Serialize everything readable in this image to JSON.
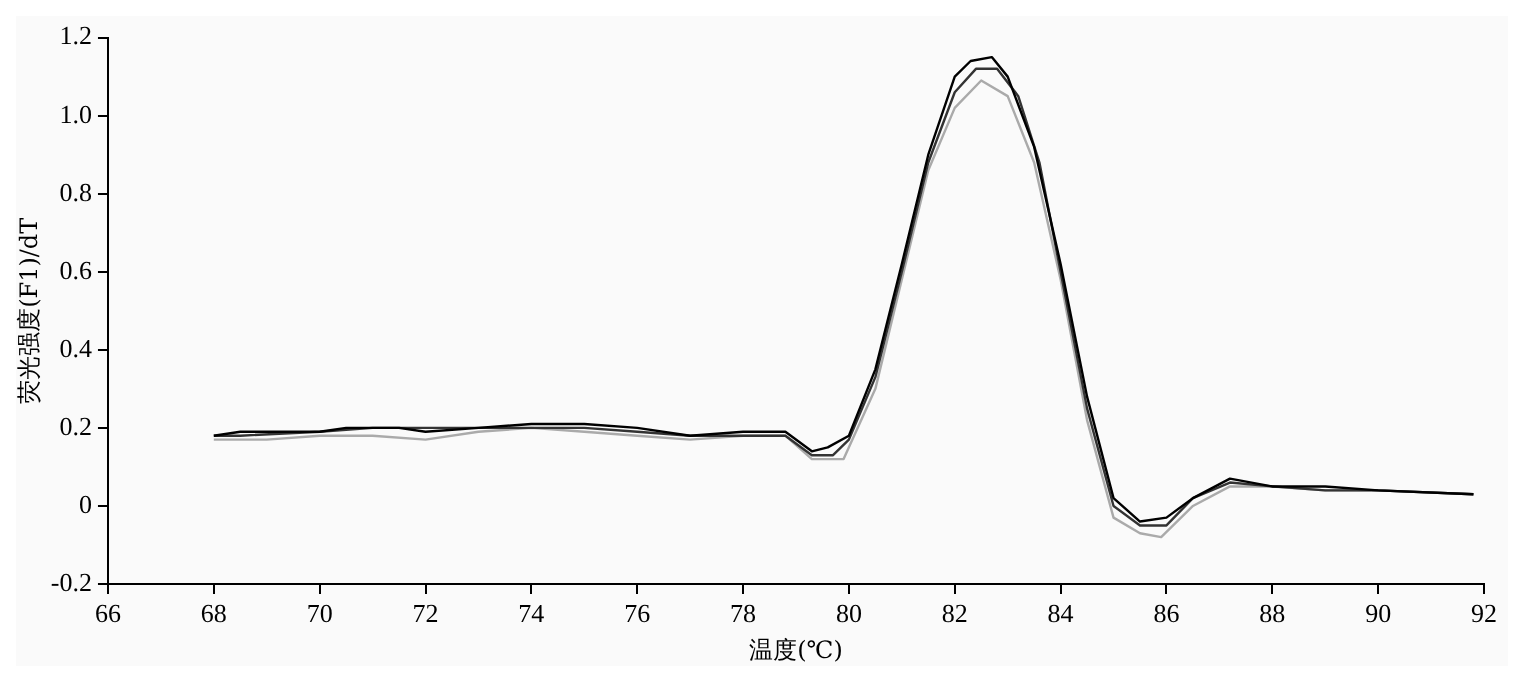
{
  "chart_data": {
    "type": "line",
    "xlabel": "温度(℃)",
    "ylabel": "荧光强度(F1)/dT",
    "xlim": [
      66,
      92
    ],
    "xticks": [
      66,
      68,
      70,
      72,
      74,
      76,
      78,
      80,
      82,
      84,
      86,
      88,
      90,
      92
    ],
    "ylim": [
      -0.2,
      1.2
    ],
    "yticks": [
      -0.2,
      0,
      0.2,
      0.4,
      0.6,
      0.8,
      {
        "value": 1,
        "label": "1.0"
      },
      1.2
    ],
    "grid": false,
    "legend": false,
    "marker": "none",
    "line_style": "solid",
    "series": [
      {
        "color": "#000000",
        "x": [
          68,
          68.5,
          70,
          70.5,
          71.5,
          72,
          73,
          74,
          75,
          76,
          77,
          78,
          78.8,
          79.3,
          79.6,
          80,
          80.5,
          81,
          81.5,
          82,
          82.3,
          82.7,
          83,
          83.5,
          84,
          84.5,
          85,
          85.5,
          86,
          86.5,
          87.2,
          88,
          89,
          90,
          91.8
        ],
        "values": [
          0.18,
          0.19,
          0.19,
          0.2,
          0.2,
          0.19,
          0.2,
          0.21,
          0.21,
          0.2,
          0.18,
          0.19,
          0.19,
          0.14,
          0.15,
          0.18,
          0.35,
          0.62,
          0.9,
          1.1,
          1.14,
          1.15,
          1.1,
          0.92,
          0.62,
          0.28,
          0.02,
          -0.04,
          -0.03,
          0.02,
          0.07,
          0.05,
          0.05,
          0.04,
          0.03
        ]
      },
      {
        "color": "#333333",
        "x": [
          68,
          68.5,
          70,
          71,
          72,
          73,
          74,
          75,
          76,
          77,
          78,
          78.8,
          79.3,
          79.7,
          80,
          80.5,
          81,
          81.5,
          82,
          82.4,
          82.8,
          83.2,
          83.6,
          84,
          84.5,
          85,
          85.5,
          86,
          86.5,
          87.2,
          88,
          89,
          90,
          91.8
        ],
        "values": [
          0.18,
          0.18,
          0.19,
          0.2,
          0.2,
          0.2,
          0.2,
          0.2,
          0.19,
          0.18,
          0.18,
          0.18,
          0.13,
          0.13,
          0.17,
          0.33,
          0.6,
          0.88,
          1.06,
          1.12,
          1.12,
          1.05,
          0.88,
          0.6,
          0.25,
          0,
          -0.05,
          -0.05,
          0.02,
          0.06,
          0.05,
          0.04,
          0.04,
          0.03
        ]
      },
      {
        "color": "#aaaaaa",
        "x": [
          68,
          69,
          70,
          71,
          72,
          73,
          74,
          75,
          76,
          77,
          78,
          78.8,
          79.3,
          79.9,
          80.5,
          81,
          81.5,
          82,
          82.5,
          83,
          83.5,
          84,
          84.5,
          85,
          85.5,
          85.9,
          86.5,
          87.2,
          88,
          89,
          90,
          91.8
        ],
        "values": [
          0.17,
          0.17,
          0.18,
          0.18,
          0.17,
          0.19,
          0.2,
          0.19,
          0.18,
          0.17,
          0.18,
          0.18,
          0.12,
          0.12,
          0.3,
          0.58,
          0.86,
          1.02,
          1.09,
          1.05,
          0.88,
          0.58,
          0.22,
          -0.03,
          -0.07,
          -0.08,
          0,
          0.05,
          0.05,
          0.04,
          0.04,
          0.03
        ]
      }
    ]
  }
}
